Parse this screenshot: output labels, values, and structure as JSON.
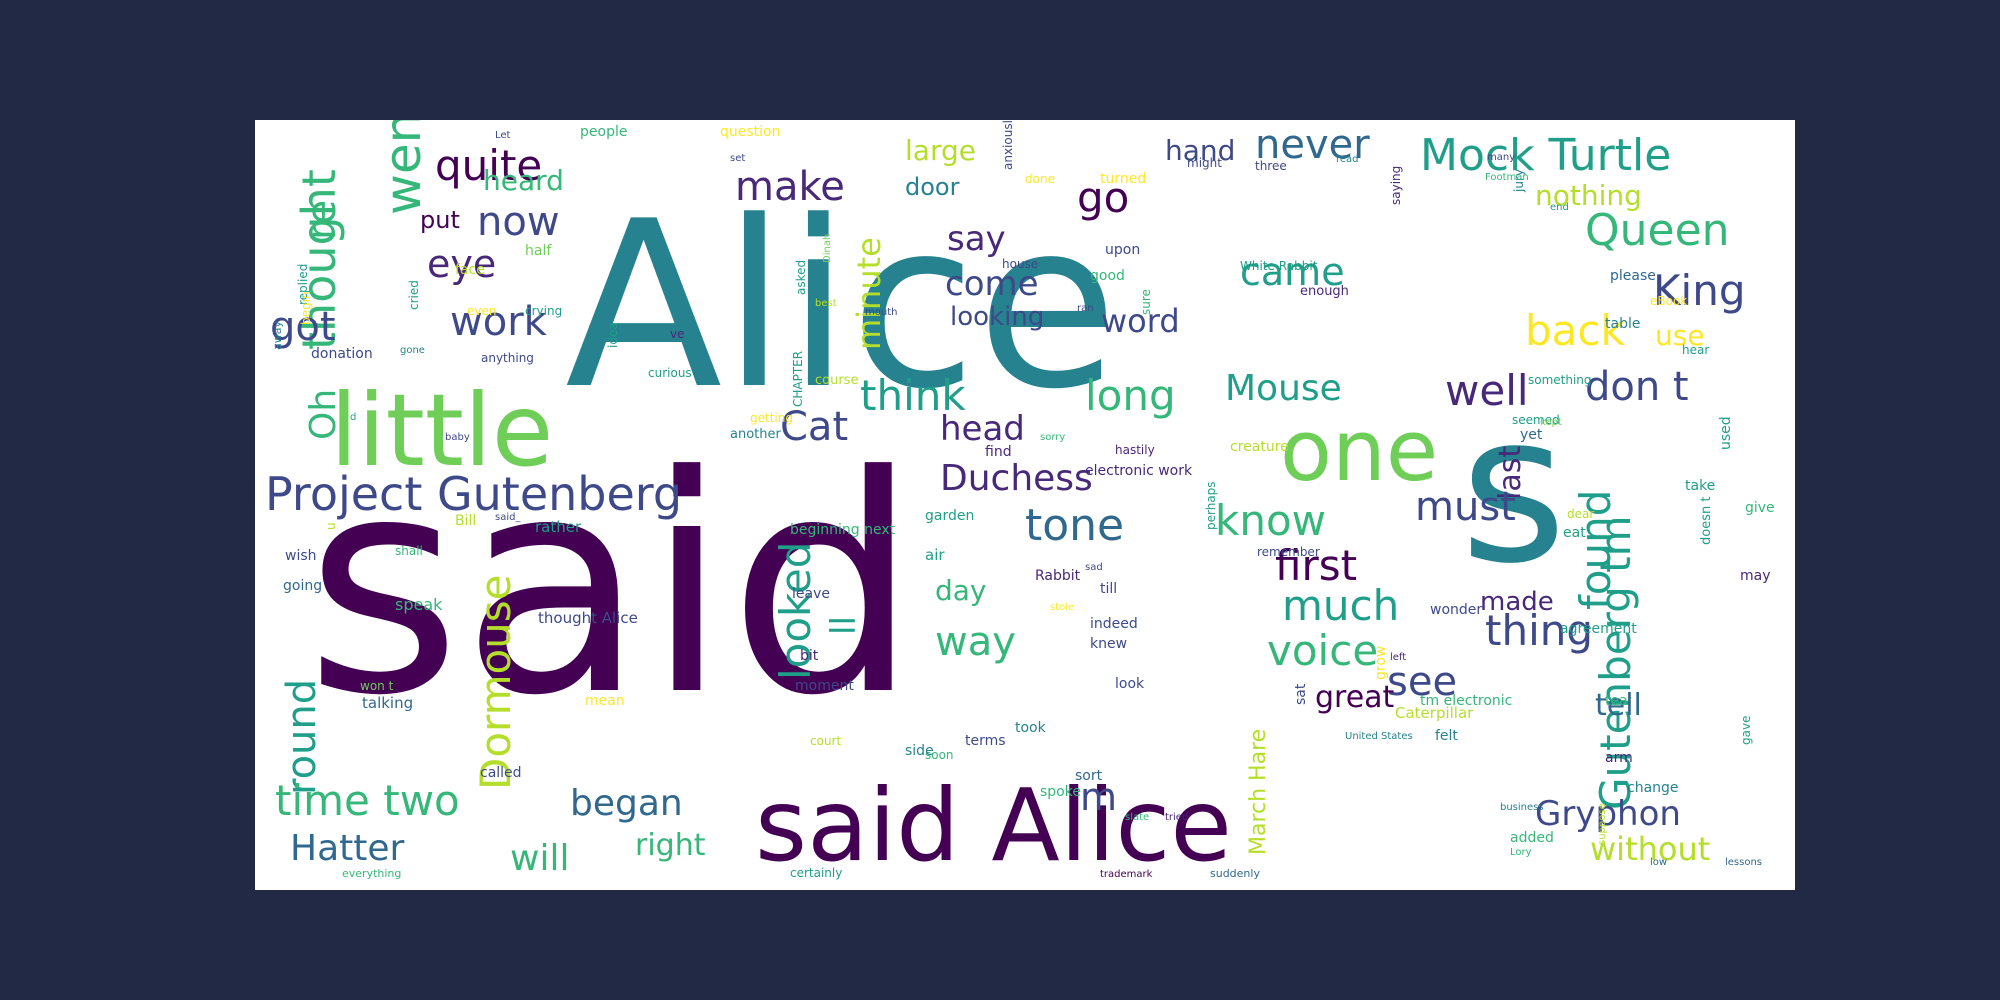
{
  "palette": {
    "page_background": "#222944",
    "panel_background": "#ffffff",
    "viridis": [
      "#440154",
      "#482878",
      "#3e4989",
      "#31688e",
      "#26828e",
      "#1f9e89",
      "#35b779",
      "#6ece58",
      "#b5de2b",
      "#fde725"
    ]
  },
  "words": [
    "Alice",
    "said",
    "s",
    "little",
    "one",
    "said Alice",
    "Project Gutenberg",
    "thought",
    "re",
    "went",
    "quite",
    "now",
    "heard",
    "put",
    "eye",
    "got",
    "work",
    "Oh",
    "make",
    "go",
    "say",
    "come",
    "looking",
    "came",
    "word",
    "large",
    "door",
    "hand",
    "never",
    "Mock Turtle",
    "nothing",
    "Queen",
    "King",
    "back",
    "use",
    "minute",
    "think",
    "long",
    "Mouse",
    "well",
    "don t",
    "Cat",
    "head",
    "Duchess",
    "tone",
    "last",
    "found",
    "Gutenberg tm",
    "know",
    "must",
    "first",
    "much",
    "voice",
    "thing",
    "see",
    "great",
    "tell",
    "made",
    "looked",
    "ll",
    "way",
    "day",
    "round",
    "Dormouse",
    "time two",
    "began",
    "m",
    "Hatter",
    "will",
    "right",
    "March Hare",
    "Gryphon",
    "without",
    "people",
    "question",
    "set",
    "done",
    "turned",
    "might",
    "three",
    "half",
    "replied",
    "begin",
    "face",
    "even",
    "cried",
    "away",
    "donation",
    "anything",
    "ve",
    "idea",
    "curious",
    "course",
    "asked",
    "house",
    "upon",
    "good",
    "White Rabbit",
    "enough",
    "please",
    "eBook",
    "table",
    "hear",
    "something",
    "seemed",
    "getting",
    "CHAPTER",
    "another",
    "find",
    "hastily",
    "creature",
    "yet",
    "electronic work",
    "perhaps",
    "Bill",
    "rather",
    "beginning next",
    "garden",
    "air",
    "Rabbit",
    "till",
    "dear",
    "remember",
    "wish",
    "going",
    "speak",
    "leave",
    "thought Alice",
    "indeed",
    "knew",
    "wonder",
    "agreement",
    "eat",
    "may",
    "give",
    "take",
    "used",
    "doesn t",
    "won t",
    "talking",
    "mean",
    "moment",
    "bit",
    "look",
    "terms",
    "took",
    "soon",
    "court",
    "side",
    "called",
    "sort",
    "spoke",
    "certainly",
    "everything",
    "trademark",
    "suddenly",
    "added",
    "felt",
    "Caterpillar",
    "United States",
    "arm",
    "change",
    "tea",
    "gave",
    "tm electronic",
    "sat",
    "jury",
    "sure",
    "saying",
    "end",
    "anxiously",
    "ran",
    "mouth",
    "crying",
    "Let",
    "many",
    "read",
    "Footman",
    "gone",
    "best",
    "Dinah",
    "baby",
    "kept",
    "grow",
    "d",
    "u",
    "shall",
    "sad",
    "said_",
    "sorry",
    "stole",
    "left",
    "suppose",
    "business",
    "slate",
    "tried",
    "Lory",
    "low",
    "lessons",
    "far"
  ]
}
